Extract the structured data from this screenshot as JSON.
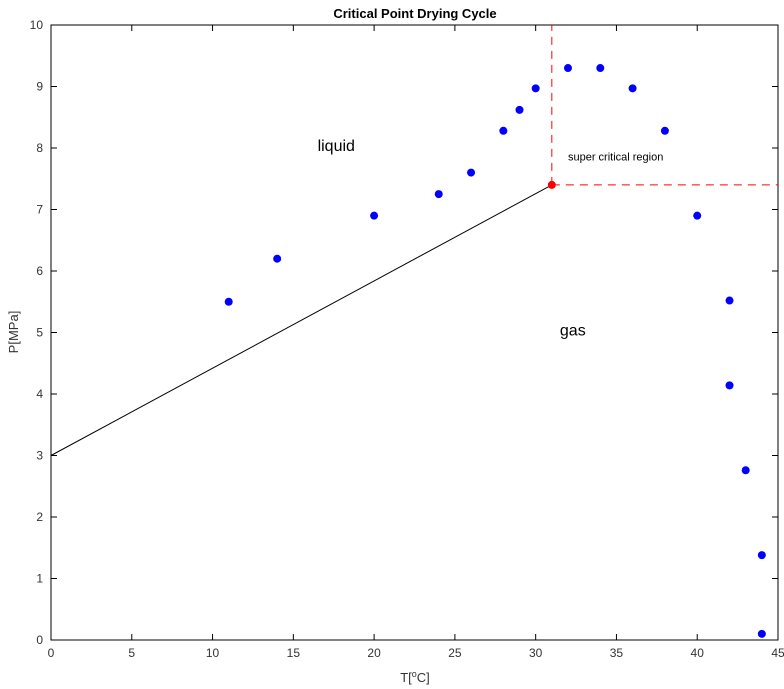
{
  "chart_data": {
    "type": "scatter",
    "title": "Critical Point Drying Cycle",
    "xlabel_parts": [
      "T[",
      "o",
      "C]"
    ],
    "ylabel": "P[MPa]",
    "xlim": [
      0,
      45
    ],
    "ylim": [
      0,
      10
    ],
    "xticks": [
      "0",
      "5",
      "10",
      "15",
      "20",
      "25",
      "30",
      "35",
      "40",
      "45"
    ],
    "yticks": [
      "0",
      "1",
      "2",
      "3",
      "4",
      "5",
      "6",
      "7",
      "8",
      "9",
      "10"
    ],
    "grid": false,
    "series": [
      {
        "color": "#0000ff",
        "points": [
          {
            "x": 11,
            "y": 5.5
          },
          {
            "x": 14,
            "y": 6.2
          },
          {
            "x": 20,
            "y": 6.9
          },
          {
            "x": 24,
            "y": 7.25
          },
          {
            "x": 26,
            "y": 7.6
          },
          {
            "x": 28,
            "y": 8.28
          },
          {
            "x": 29,
            "y": 8.62
          },
          {
            "x": 30,
            "y": 8.97
          },
          {
            "x": 32,
            "y": 9.3
          },
          {
            "x": 34,
            "y": 9.3
          },
          {
            "x": 36,
            "y": 8.97
          },
          {
            "x": 38,
            "y": 8.28
          },
          {
            "x": 40,
            "y": 6.9
          },
          {
            "x": 42,
            "y": 5.52
          },
          {
            "x": 42,
            "y": 4.14
          },
          {
            "x": 43,
            "y": 2.76
          },
          {
            "x": 44,
            "y": 1.38
          },
          {
            "x": 44,
            "y": 0.1
          }
        ]
      }
    ],
    "boundary_line": {
      "color": "#000000",
      "points": [
        {
          "x": 0,
          "y": 3.0
        },
        {
          "x": 31,
          "y": 7.4
        }
      ]
    },
    "critical_point": {
      "x": 31,
      "y": 7.4,
      "color": "#ff0000"
    },
    "critical_lines": {
      "color": "#ff0000",
      "dash": true
    },
    "annotations": [
      {
        "text": "liquid",
        "x": 16.5,
        "y": 7.95,
        "size": "large"
      },
      {
        "text": "gas",
        "x": 31.5,
        "y": 4.95,
        "size": "large"
      },
      {
        "text": "super critical region",
        "x": 32,
        "y": 7.8,
        "size": "small"
      }
    ]
  }
}
